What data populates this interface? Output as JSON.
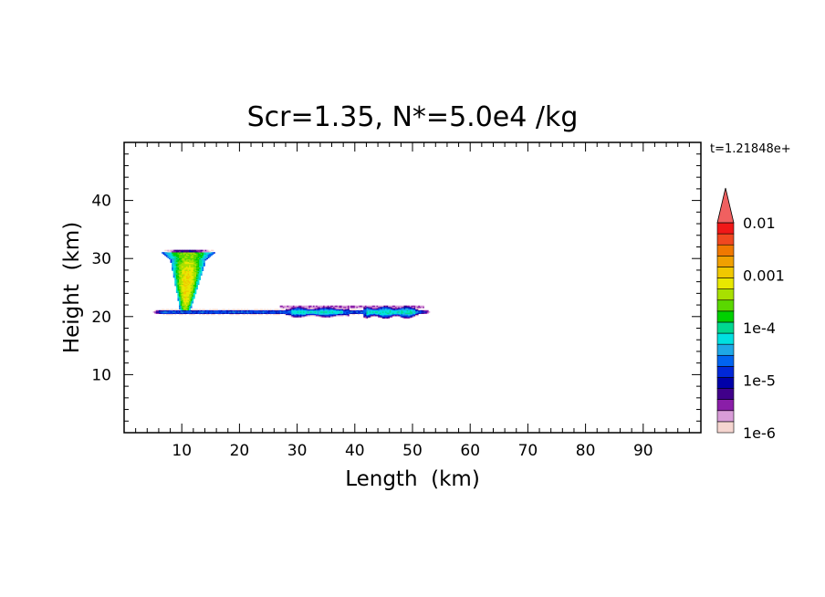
{
  "chart_data": {
    "type": "heatmap",
    "title": "Scr=1.35, N*=5.0e4 /kg",
    "time_label": "t=1.21848e+",
    "xlabel": "Length  (km)",
    "ylabel": "Height  (km)",
    "xlim": [
      0,
      100
    ],
    "ylim": [
      0,
      50
    ],
    "x_ticks": [
      10,
      20,
      30,
      40,
      50,
      60,
      70,
      80,
      90
    ],
    "y_ticks": [
      10,
      20,
      30,
      40
    ],
    "x_tick_labels": [
      "10",
      "20",
      "30",
      "40",
      "50",
      "60",
      "70",
      "80",
      "90"
    ],
    "y_tick_labels": [
      "10",
      "20",
      "30",
      "40"
    ],
    "grid": false,
    "colorbar": {
      "placement": "right",
      "scale": "log",
      "range": [
        1e-06,
        0.01
      ],
      "tick_values": [
        1e-06,
        1e-05,
        0.0001,
        0.001,
        0.01
      ],
      "tick_labels": [
        "1e-6",
        "1e-5",
        "1e-4",
        "0.001",
        "0.01"
      ],
      "colors": [
        "#f5d5d0",
        "#d89cd8",
        "#8a1ea8",
        "#40008a",
        "#0000a8",
        "#0028d8",
        "#0064f0",
        "#1ea8e6",
        "#00e0e0",
        "#00d890",
        "#00d000",
        "#5ad800",
        "#a8e000",
        "#e8e800",
        "#f0c800",
        "#f0a000",
        "#f07800",
        "#f04820",
        "#f01818"
      ],
      "extend_color": "#f06060"
    },
    "features": [
      {
        "name": "plume",
        "x_range": [
          6.5,
          16.0
        ],
        "y_range": [
          21.0,
          31.5
        ],
        "peak": 0.001
      },
      {
        "name": "layer",
        "x_range": [
          5.0,
          53.0
        ],
        "y_range": [
          19.5,
          22.5
        ],
        "peak": 0.0001
      }
    ]
  }
}
